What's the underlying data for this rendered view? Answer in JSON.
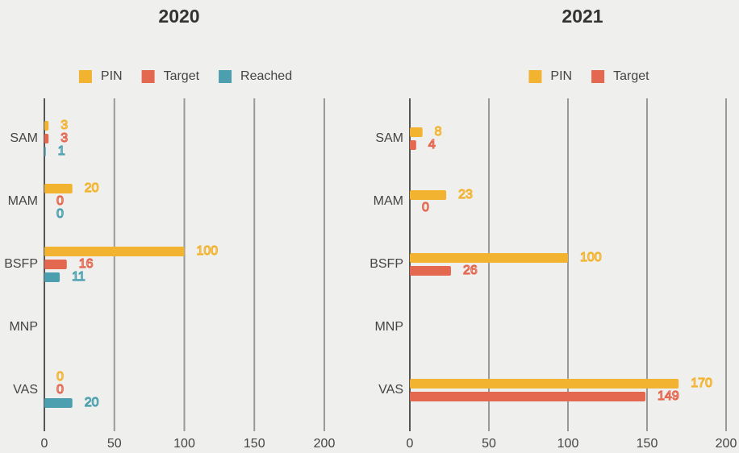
{
  "chart_data": [
    {
      "type": "bar",
      "orientation": "horizontal",
      "title": "2020",
      "categories": [
        "SAM",
        "MAM",
        "BSFP",
        "MNP",
        "VAS"
      ],
      "series": [
        {
          "name": "PIN",
          "color": "#f2b330",
          "values": [
            3,
            20,
            100,
            null,
            0
          ]
        },
        {
          "name": "Target",
          "color": "#e4674f",
          "values": [
            3,
            0,
            16,
            null,
            0
          ]
        },
        {
          "name": "Reached",
          "color": "#4b9fae",
          "values": [
            1,
            0,
            11,
            null,
            20
          ]
        }
      ],
      "xlim": [
        0,
        200
      ],
      "xticks": [
        0,
        50,
        100,
        150,
        200
      ],
      "grid": true,
      "legend": "top"
    },
    {
      "type": "bar",
      "orientation": "horizontal",
      "title": "2021",
      "categories": [
        "SAM",
        "MAM",
        "BSFP",
        "MNP",
        "VAS"
      ],
      "series": [
        {
          "name": "PIN",
          "color": "#f2b330",
          "values": [
            8,
            23,
            100,
            null,
            170
          ]
        },
        {
          "name": "Target",
          "color": "#e4674f",
          "values": [
            4,
            0,
            26,
            null,
            149
          ]
        }
      ],
      "xlim": [
        0,
        200
      ],
      "xticks": [
        0,
        50,
        100,
        150,
        200
      ],
      "grid": true,
      "legend": "top"
    }
  ]
}
